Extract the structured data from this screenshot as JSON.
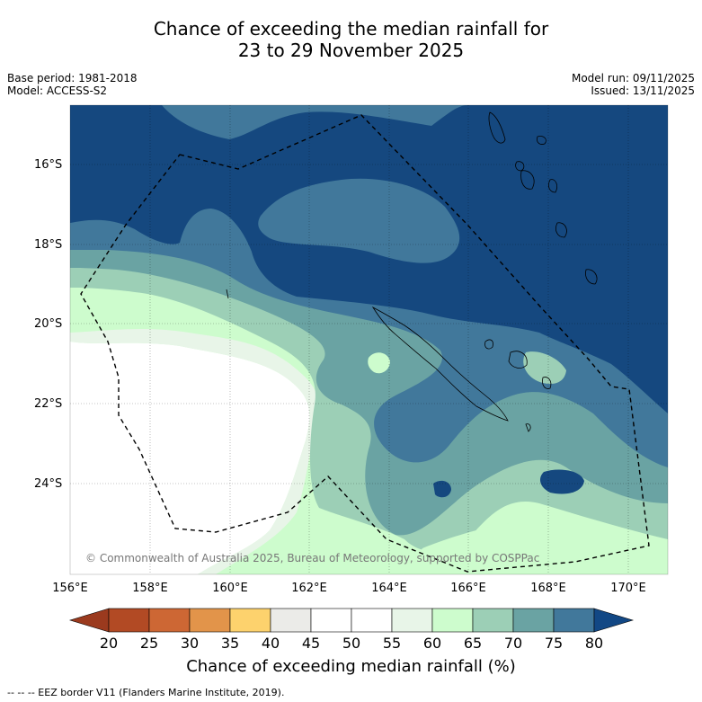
{
  "title_line1": "Chance of exceeding the median rainfall for",
  "title_line2": "23 to 29 November 2025",
  "meta_left": {
    "base_period": "Base period: 1981-2018",
    "model": "Model: ACCESS-S2"
  },
  "meta_right": {
    "model_run": "Model run: 09/11/2025",
    "issued": "Issued: 13/11/2025"
  },
  "lat_labels": [
    "16°S",
    "18°S",
    "20°S",
    "22°S",
    "24°S"
  ],
  "lon_labels": [
    "156°E",
    "158°E",
    "160°E",
    "162°E",
    "164°E",
    "166°E",
    "168°E",
    "170°E"
  ],
  "copyright": "© Commonwealth of Australia 2025, Bureau of Meteorology, supported by COSPPac",
  "colorbar": {
    "title": "Chance of exceeding median rainfall (%)",
    "ticks": [
      "20",
      "25",
      "30",
      "35",
      "40",
      "45",
      "50",
      "55",
      "60",
      "65",
      "70",
      "75",
      "80"
    ],
    "colors": [
      "#b24a24",
      "#cd6734",
      "#e2944a",
      "#fdd26d",
      "#ebebe8",
      "#ffffff",
      "#ffffff",
      "#e8f5e8",
      "#cdfccd",
      "#9ccfb6",
      "#6aa3a3",
      "#41789b",
      "#15487f"
    ],
    "under_color": "#9b3a1e",
    "over_color": "#124885"
  },
  "footnote": "-- -- -- EEZ border V11 (Flanders Marine Institute, 2019).",
  "map_colors": {
    "c55_60": "#e8f5e8",
    "c60_65": "#cdfccd",
    "c65_70": "#9ccfb6",
    "c70_75": "#6aa3a3",
    "c75_80": "#41789b",
    "c80": "#15487f"
  }
}
